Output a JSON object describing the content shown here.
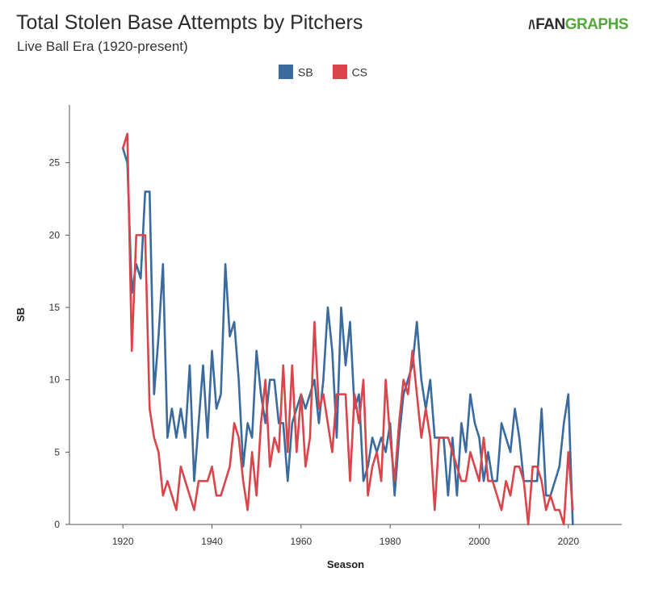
{
  "title": "Total Stolen Base Attempts by Pitchers",
  "subtitle": "Live Ball Era (1920-present)",
  "logo": {
    "mark": "/\\",
    "part1": "FAN",
    "part2": "GRAPHS"
  },
  "colors": {
    "sb": "#3a6a9e",
    "cs": "#d9454b",
    "axis": "#555555"
  },
  "chart_data": {
    "type": "line",
    "title": "Total Stolen Base Attempts by Pitchers",
    "subtitle": "Live Ball Era (1920-present)",
    "xlabel": "Season",
    "ylabel": "SB",
    "xlim": [
      1908,
      2032
    ],
    "ylim": [
      0,
      29
    ],
    "x_ticks": [
      1920,
      1940,
      1960,
      1980,
      2000,
      2020
    ],
    "y_ticks": [
      0,
      5,
      10,
      15,
      20,
      25
    ],
    "legend_position": "top-center",
    "grid": false,
    "x": [
      1920,
      1921,
      1922,
      1923,
      1924,
      1925,
      1926,
      1927,
      1928,
      1929,
      1930,
      1931,
      1932,
      1933,
      1934,
      1935,
      1936,
      1937,
      1938,
      1939,
      1940,
      1941,
      1942,
      1943,
      1944,
      1945,
      1946,
      1947,
      1948,
      1949,
      1950,
      1951,
      1952,
      1953,
      1954,
      1955,
      1956,
      1957,
      1958,
      1959,
      1960,
      1961,
      1962,
      1963,
      1964,
      1965,
      1966,
      1967,
      1968,
      1969,
      1970,
      1971,
      1972,
      1973,
      1974,
      1975,
      1976,
      1977,
      1978,
      1979,
      1980,
      1981,
      1982,
      1983,
      1984,
      1985,
      1986,
      1987,
      1988,
      1989,
      1990,
      1991,
      1992,
      1993,
      1994,
      1995,
      1996,
      1997,
      1998,
      1999,
      2000,
      2001,
      2002,
      2003,
      2004,
      2005,
      2006,
      2007,
      2008,
      2009,
      2010,
      2011,
      2012,
      2013,
      2014,
      2015,
      2016,
      2017,
      2018,
      2019,
      2020,
      2021
    ],
    "series": [
      {
        "name": "SB",
        "color": "#3a6a9e",
        "values": [
          26,
          25,
          16,
          18,
          17,
          23,
          23,
          9,
          13,
          18,
          6,
          8,
          6,
          8,
          6,
          11,
          3,
          7,
          11,
          6,
          12,
          8,
          9,
          18,
          13,
          14,
          10,
          4,
          7,
          6,
          12,
          9,
          7,
          10,
          10,
          7,
          7,
          3,
          7,
          8,
          9,
          8,
          9,
          10,
          7,
          10,
          15,
          12,
          6,
          15,
          11,
          14,
          8,
          9,
          3,
          4,
          6,
          5,
          6,
          5,
          7,
          2,
          6,
          9,
          10,
          11,
          14,
          10,
          8,
          10,
          6,
          6,
          6,
          2,
          6,
          2,
          7,
          5,
          9,
          7,
          6,
          3,
          5,
          3,
          3,
          7,
          6,
          5,
          8,
          6,
          3,
          3,
          3,
          3,
          8,
          2,
          2,
          3,
          4,
          7,
          9,
          0
        ]
      },
      {
        "name": "CS",
        "color": "#d9454b",
        "values": [
          26,
          27,
          12,
          20,
          20,
          20,
          8,
          6,
          5,
          2,
          3,
          2,
          1,
          4,
          3,
          2,
          1,
          3,
          3,
          3,
          4,
          2,
          2,
          3,
          4,
          7,
          6,
          3,
          1,
          5,
          2,
          7,
          10,
          4,
          6,
          5,
          11,
          5,
          11,
          5,
          9,
          4,
          6,
          14,
          8,
          9,
          7,
          5,
          9,
          9,
          9,
          3,
          9,
          7,
          10,
          2,
          4,
          5,
          3,
          10,
          6,
          3,
          7,
          10,
          9,
          12,
          9,
          6,
          8,
          6,
          1,
          6,
          6,
          6,
          5,
          4,
          3,
          3,
          5,
          4,
          3,
          6,
          3,
          3,
          2,
          1,
          3,
          2,
          4,
          4,
          3,
          0,
          4,
          4,
          3,
          1,
          2,
          1,
          1,
          0,
          5,
          1
        ]
      }
    ]
  }
}
